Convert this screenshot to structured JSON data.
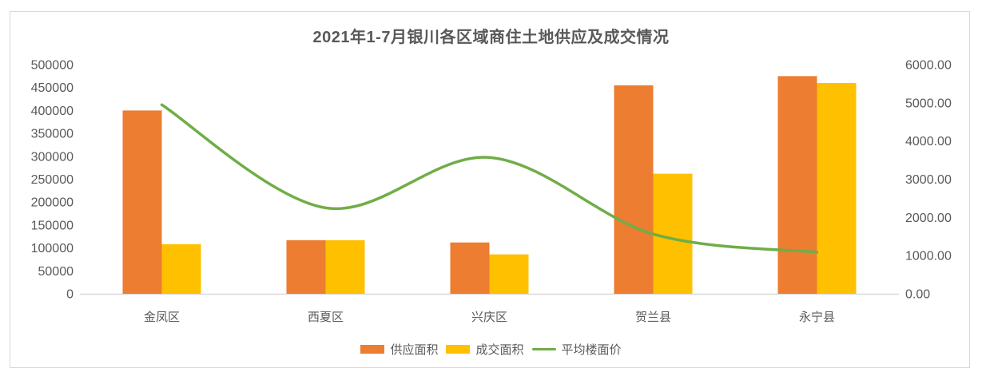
{
  "chart_data": {
    "type": "bar",
    "subtype": "combo-bar-line",
    "title": "2021年1-7月银川各区域商住土地供应及成交情况",
    "categories": [
      "金凤区",
      "西夏区",
      "兴庆区",
      "贺兰县",
      "永宁县"
    ],
    "series": [
      {
        "name": "供应面积",
        "type": "bar",
        "axis": "left",
        "color": "#ED7D31",
        "values": [
          400000,
          117000,
          112000,
          455000,
          475000
        ]
      },
      {
        "name": "成交面积",
        "type": "bar",
        "axis": "left",
        "color": "#FFC000",
        "values": [
          108000,
          117000,
          86000,
          262000,
          460000
        ]
      },
      {
        "name": "平均楼面价",
        "type": "line",
        "axis": "right",
        "color": "#70AD47",
        "smooth": true,
        "values": [
          4950,
          2250,
          3570,
          1565,
          1090
        ]
      }
    ],
    "left_axis": {
      "min": 0,
      "max": 500000,
      "step": 50000,
      "tick_labels": [
        "0",
        "50000",
        "100000",
        "150000",
        "200000",
        "250000",
        "300000",
        "350000",
        "400000",
        "450000",
        "500000"
      ]
    },
    "right_axis": {
      "min": 0,
      "max": 6000,
      "step": 1000,
      "tick_labels": [
        "0.00",
        "1000.00",
        "2000.00",
        "3000.00",
        "4000.00",
        "5000.00",
        "6000.00"
      ]
    },
    "legend_position": "bottom",
    "gridlines": false,
    "xlabel": "",
    "ylabel": ""
  },
  "style": {
    "text_color": "#595959",
    "axis_line_color": "#d9d9d9",
    "frame_border_color": "#d9d9d9",
    "background": "#ffffff"
  }
}
